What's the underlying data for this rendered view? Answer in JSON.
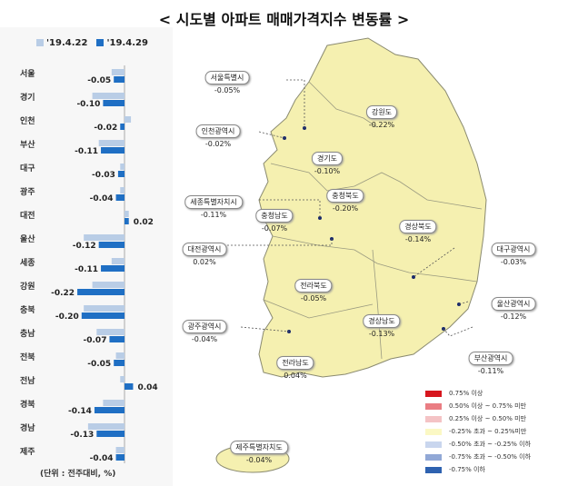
{
  "title": "< 시도별 아파트 매매가격지수 변동률 >",
  "chart_data": {
    "type": "bar",
    "orientation": "horizontal",
    "categories": [
      "서울",
      "경기",
      "인천",
      "부산",
      "대구",
      "광주",
      "대전",
      "울산",
      "세종",
      "강원",
      "충북",
      "충남",
      "전북",
      "전남",
      "경북",
      "경남",
      "제주"
    ],
    "series": [
      {
        "name": "'19.4.22",
        "color": "#b9cde6",
        "values": [
          -0.06,
          -0.15,
          0.03,
          -0.12,
          -0.02,
          -0.02,
          0.02,
          -0.19,
          -0.06,
          -0.15,
          -0.19,
          -0.13,
          -0.04,
          -0.02,
          -0.1,
          -0.17,
          -0.04
        ]
      },
      {
        "name": "'19.4.29",
        "color": "#1f6fc4",
        "values": [
          -0.05,
          -0.1,
          -0.02,
          -0.11,
          -0.03,
          -0.04,
          0.02,
          -0.12,
          -0.11,
          -0.22,
          -0.2,
          -0.07,
          -0.05,
          0.04,
          -0.14,
          -0.13,
          -0.04
        ],
        "labels": [
          "-0.05",
          "-0.10",
          "-0.02",
          "-0.11",
          "-0.03",
          "-0.04",
          "0.02",
          "-0.12",
          "-0.11",
          "-0.22",
          "-0.20",
          "-0.07",
          "-0.05",
          "0.04",
          "-0.14",
          "-0.13",
          "-0.04"
        ]
      }
    ],
    "unit_note": "(단위 : 전주대비, %)",
    "legend_placement": "top"
  },
  "map": {
    "regions": [
      {
        "name": "서울특별시",
        "value": "-0.05%"
      },
      {
        "name": "강원도",
        "value": "-0.22%"
      },
      {
        "name": "인천광역시",
        "value": "-0.02%"
      },
      {
        "name": "경기도",
        "value": "-0.10%"
      },
      {
        "name": "충청북도",
        "value": "-0.20%"
      },
      {
        "name": "세종특별자치시",
        "value": "-0.11%"
      },
      {
        "name": "충청남도",
        "value": "-0.07%"
      },
      {
        "name": "경상북도",
        "value": "-0.14%"
      },
      {
        "name": "대전광역시",
        "value": "0.02%"
      },
      {
        "name": "대구광역시",
        "value": "-0.03%"
      },
      {
        "name": "전라북도",
        "value": "-0.05%"
      },
      {
        "name": "울산광역시",
        "value": "-0.12%"
      },
      {
        "name": "광주광역시",
        "value": "-0.04%"
      },
      {
        "name": "경상남도",
        "value": "-0.13%"
      },
      {
        "name": "부산광역시",
        "value": "-0.11%"
      },
      {
        "name": "전라남도",
        "value": "0.04%"
      },
      {
        "name": "제주특별자치도",
        "value": "-0.04%"
      }
    ],
    "fill": "#f5f0b0",
    "legend": [
      {
        "label": "0.75% 이상",
        "color": "#d7161e"
      },
      {
        "label": "0.50% 이상 ~ 0.75% 미만",
        "color": "#ea7d83"
      },
      {
        "label": "0.25% 이상 ~ 0.50% 미만",
        "color": "#f4c3c5"
      },
      {
        "label": "-0.25% 초과 ~ 0.25%미만",
        "color": "#fbf8c4"
      },
      {
        "label": "-0.50% 초과 ~ -0.25% 이하",
        "color": "#c9d6ee"
      },
      {
        "label": "-0.75% 초과 ~ -0.50% 이하",
        "color": "#91a8d6"
      },
      {
        "label": "-0.75% 이하",
        "color": "#2e62b0"
      }
    ]
  }
}
